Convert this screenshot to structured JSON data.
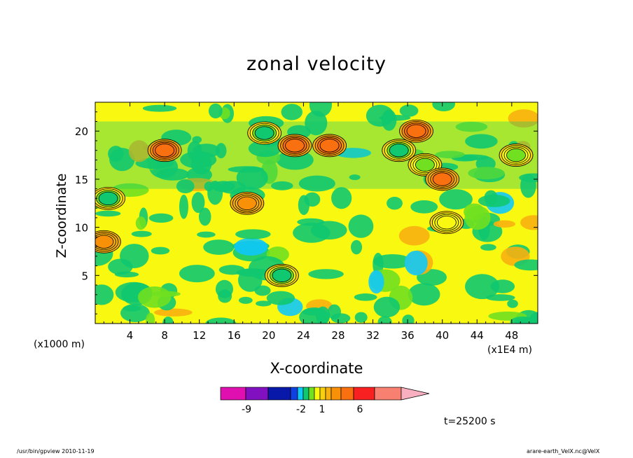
{
  "chart_data": {
    "type": "heatmap",
    "title": "zonal velocity",
    "xlabel": "X-coordinate",
    "ylabel": "Z-coordinate",
    "x_unit_label": "(x1E4 m)",
    "z_unit_label": "(x1000 m)",
    "x_ticks": [
      "4",
      "8",
      "12",
      "16",
      "20",
      "24",
      "28",
      "32",
      "36",
      "40",
      "44",
      "48"
    ],
    "y_ticks": [
      "5",
      "10",
      "15",
      "20"
    ],
    "xlim": [
      0,
      51
    ],
    "ylim": [
      0,
      23
    ],
    "colorbar": {
      "labels": [
        "-9",
        "-2",
        "1",
        "6"
      ],
      "colors": [
        "#e010b0",
        "#8010c0",
        "#0818a8",
        "#1040e0",
        "#10c8f8",
        "#10c870",
        "#70e020",
        "#f8f810",
        "#f8d010",
        "#f8b010",
        "#f89008",
        "#f87010",
        "#f82020",
        "#f88070",
        "#f8b0c0"
      ]
    },
    "features": [
      {
        "x": 21.5,
        "z": 5.0,
        "value": -4
      },
      {
        "x": 19.5,
        "z": 19.8,
        "value": -4
      },
      {
        "x": 1.5,
        "z": 13.0,
        "value": -4
      },
      {
        "x": 35.0,
        "z": 18.0,
        "value": -4
      },
      {
        "x": 38.0,
        "z": 16.5,
        "value": -3
      },
      {
        "x": 48.5,
        "z": 17.5,
        "value": -3
      },
      {
        "x": 40.5,
        "z": 10.5,
        "value": -2
      },
      {
        "x": 23.0,
        "z": 18.5,
        "value": 6
      },
      {
        "x": 17.5,
        "z": 12.5,
        "value": 3
      },
      {
        "x": 27.0,
        "z": 18.5,
        "value": 6
      },
      {
        "x": 8.0,
        "z": 18.0,
        "value": 6
      },
      {
        "x": 1.0,
        "z": 8.5,
        "value": 3
      },
      {
        "x": 37.0,
        "z": 20.0,
        "value": 6
      },
      {
        "x": 40.0,
        "z": 15.0,
        "value": 5
      }
    ]
  },
  "annotations": {
    "time": "t=25200 s",
    "footer_left": "/usr/bin/gpview   2010-11-19",
    "footer_right": "arare-earth_VelX.nc@VelX"
  }
}
